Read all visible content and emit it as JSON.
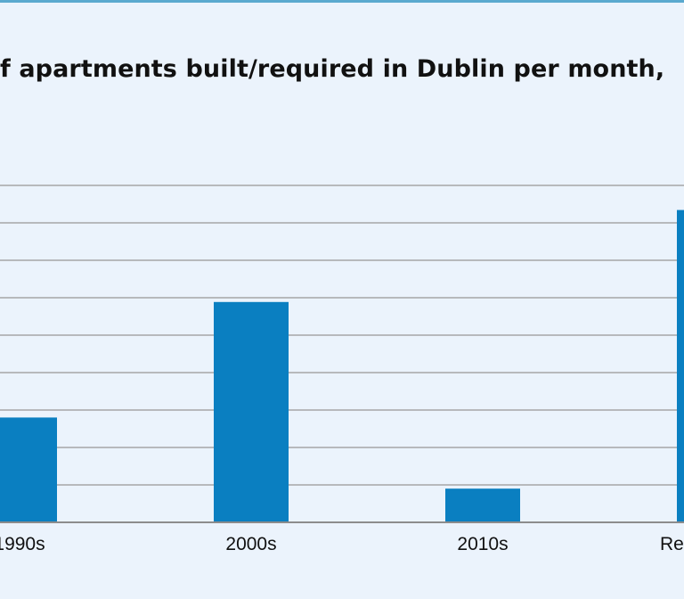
{
  "chart_data": {
    "type": "bar",
    "title": "f apartments built/required in Dublin per month,",
    "categories": [
      "1990s",
      "2000s",
      "2010s",
      "Re"
    ],
    "values": [
      196,
      412,
      63,
      584
    ],
    "ylim": [
      0,
      630
    ],
    "grid": true,
    "xlabel": "",
    "ylabel": "",
    "colors": {
      "bar": "#0a7fc1",
      "grid": "#a6a6a6",
      "axis": "#8c8c8c",
      "background": "#ebf3fc"
    }
  }
}
